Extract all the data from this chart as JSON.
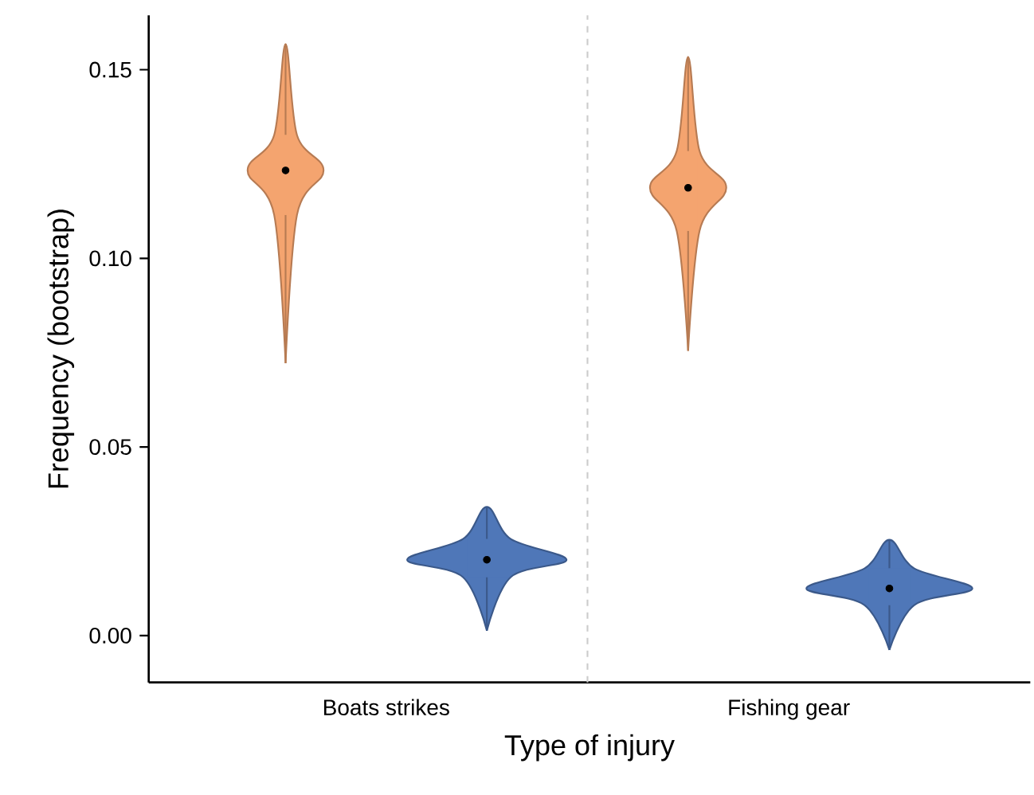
{
  "chart_data": {
    "type": "box",
    "xlabel": "Type of injury",
    "ylabel": "Frequency (bootstrap)",
    "categories": [
      "Boats strikes",
      "Fishing gear"
    ],
    "series": [
      {
        "color": "#f4a46f",
        "boxes": [
          {
            "low": 0.0722,
            "q1": 0.1115,
            "median": 0.1233,
            "q3": 0.1327,
            "high": 0.1568
          },
          {
            "low": 0.0755,
            "q1": 0.1073,
            "median": 0.1187,
            "q3": 0.1284,
            "high": 0.1534
          }
        ]
      },
      {
        "color": "#4f77b8",
        "boxes": [
          {
            "low": 0.0013,
            "q1": 0.0155,
            "median": 0.0201,
            "q3": 0.0256,
            "high": 0.0341
          },
          {
            "low": -0.0038,
            "q1": 0.0081,
            "median": 0.0125,
            "q3": 0.0178,
            "high": 0.0254
          }
        ]
      }
    ],
    "ylim": [
      -0.0124,
      0.1644
    ],
    "yticks": [
      {
        "value": 0,
        "label": "0.00"
      },
      {
        "value": 0.05,
        "label": "0.05"
      },
      {
        "value": 0.1,
        "label": "0.10"
      },
      {
        "value": 0.15,
        "label": "0.15"
      }
    ],
    "grid": false
  }
}
